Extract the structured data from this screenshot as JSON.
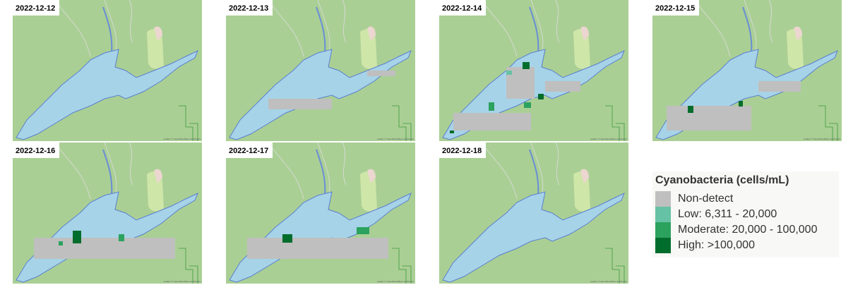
{
  "panels": [
    {
      "date": "2022-12-12"
    },
    {
      "date": "2022-12-13"
    },
    {
      "date": "2022-12-14"
    },
    {
      "date": "2022-12-15"
    },
    {
      "date": "2022-12-16"
    },
    {
      "date": "2022-12-17"
    },
    {
      "date": "2022-12-18"
    }
  ],
  "attribution": "Leaflet | © OpenStreetMap contributors",
  "legend": {
    "title": "Cyanobacteria (cells/mL)",
    "items": [
      {
        "label": "Non-detect",
        "color": "#bfbfbf"
      },
      {
        "label": "Low: 6,311 - 20,000",
        "color": "#66c2a4"
      },
      {
        "label": "Moderate: 20,000 - 100,000",
        "color": "#2ca25f"
      },
      {
        "label": "High: >100,000",
        "color": "#006d2c"
      }
    ]
  }
}
